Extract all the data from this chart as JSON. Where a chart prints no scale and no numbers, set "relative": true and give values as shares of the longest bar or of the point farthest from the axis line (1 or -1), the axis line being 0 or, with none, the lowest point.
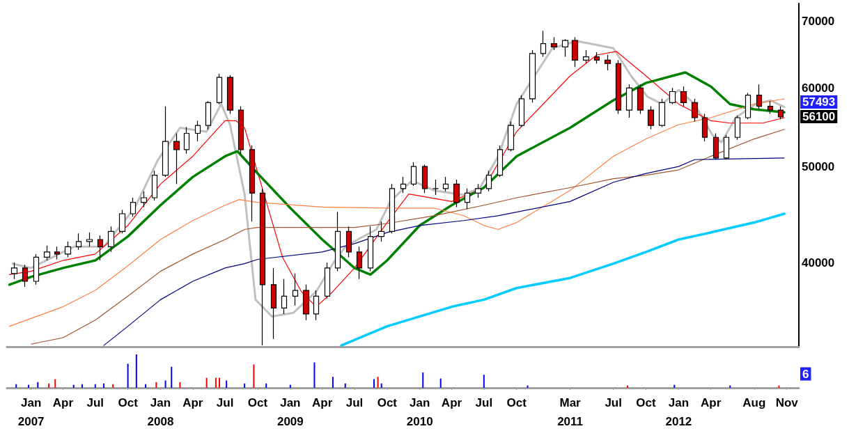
{
  "chart_data": [
    {
      "type": "candlestick",
      "log": "y",
      "tick_labels": "y",
      "marker": "none",
      "line_style": "solid",
      "ylim": [
        32900,
        73000
      ],
      "yticks": [
        40000,
        50000,
        60000,
        70000
      ],
      "xlim": [
        "2006-10-25",
        "2012-12-05"
      ],
      "x": [
        "2006-11-15",
        "2006-12-15",
        "2007-01-15",
        "2007-02-15",
        "2007-03-15",
        "2007-04-15",
        "2007-05-15",
        "2007-06-15",
        "2007-07-15",
        "2007-08-15",
        "2007-09-15",
        "2007-10-15",
        "2007-11-15",
        "2007-12-15",
        "2008-01-15",
        "2008-02-15",
        "2008-03-15",
        "2008-04-15",
        "2008-05-15",
        "2008-06-15",
        "2008-07-15",
        "2008-08-15",
        "2008-09-15",
        "2008-10-15",
        "2008-11-15",
        "2008-12-15",
        "2009-01-15",
        "2009-02-15",
        "2009-03-15",
        "2009-04-15",
        "2009-05-15",
        "2009-06-15",
        "2009-07-15",
        "2009-08-15",
        "2009-09-15",
        "2009-10-15",
        "2009-11-15",
        "2009-12-15",
        "2010-01-15",
        "2010-02-15",
        "2010-03-15",
        "2010-04-15",
        "2010-05-15",
        "2010-06-15",
        "2010-07-15",
        "2010-08-15",
        "2010-09-15",
        "2010-10-15",
        "2010-11-15",
        "2010-12-15",
        "2011-01-15",
        "2011-02-15",
        "2011-03-15",
        "2011-04-15",
        "2011-05-15",
        "2011-06-15",
        "2011-07-15",
        "2011-08-15",
        "2011-09-15",
        "2011-10-15",
        "2011-11-15",
        "2011-12-15",
        "2012-01-15",
        "2012-02-15",
        "2012-03-15",
        "2012-04-15",
        "2012-05-15",
        "2012-06-15",
        "2012-07-15",
        "2012-08-15",
        "2012-09-15",
        "2012-10-15"
      ],
      "ohlc": [
        [
          39000,
          40000,
          38500,
          39500
        ],
        [
          39500,
          39800,
          37800,
          38300
        ],
        [
          38300,
          40800,
          38000,
          40500
        ],
        [
          40500,
          41600,
          40200,
          41000
        ],
        [
          41000,
          41500,
          40300,
          40800
        ],
        [
          40800,
          42000,
          40500,
          41500
        ],
        [
          41500,
          42800,
          41200,
          42000
        ],
        [
          42000,
          42900,
          41500,
          42200
        ],
        [
          42200,
          42600,
          40200,
          41500
        ],
        [
          41500,
          43500,
          41000,
          43000
        ],
        [
          43000,
          45200,
          42800,
          44800
        ],
        [
          44800,
          46500,
          44500,
          46000
        ],
        [
          46000,
          47200,
          45500,
          46500
        ],
        [
          46500,
          49500,
          46200,
          49000
        ],
        [
          49000,
          57500,
          48800,
          53000
        ],
        [
          53000,
          54000,
          48000,
          52000
        ],
        [
          52000,
          54800,
          51500,
          54000
        ],
        [
          54000,
          55600,
          53000,
          55000
        ],
        [
          55000,
          58200,
          54500,
          58000
        ],
        [
          58000,
          62000,
          57800,
          61500
        ],
        [
          61500,
          61800,
          56500,
          57000
        ],
        [
          57000,
          57500,
          51500,
          52000
        ],
        [
          52000,
          52500,
          44000,
          47000
        ],
        [
          47000,
          47500,
          33000,
          38000
        ],
        [
          38000,
          39500,
          33500,
          36000
        ],
        [
          36000,
          38500,
          35500,
          37000
        ],
        [
          37000,
          39000,
          36200,
          37500
        ],
        [
          37500,
          38000,
          35000,
          35500
        ],
        [
          35500,
          37500,
          35000,
          37000
        ],
        [
          37000,
          40000,
          36800,
          39500
        ],
        [
          39500,
          45000,
          39200,
          43000
        ],
        [
          43000,
          43500,
          40500,
          41000
        ],
        [
          41000,
          41500,
          38500,
          39500
        ],
        [
          39500,
          43500,
          39200,
          42500
        ],
        [
          42500,
          44000,
          42000,
          43000
        ],
        [
          43000,
          48000,
          42800,
          47500
        ],
        [
          47500,
          48800,
          47000,
          48000
        ],
        [
          48000,
          50500,
          47800,
          50000
        ],
        [
          50000,
          50200,
          47000,
          47500
        ],
        [
          47500,
          48500,
          46800,
          47500
        ],
        [
          47500,
          48800,
          47200,
          48000
        ],
        [
          48000,
          48500,
          45500,
          46000
        ],
        [
          46000,
          47500,
          45300,
          47000
        ],
        [
          47000,
          48000,
          46500,
          47500
        ],
        [
          47500,
          49500,
          47200,
          49000
        ],
        [
          49000,
          52500,
          48800,
          52000
        ],
        [
          52000,
          55500,
          51800,
          55000
        ],
        [
          55000,
          59000,
          54800,
          58500
        ],
        [
          58500,
          65500,
          58000,
          65000
        ],
        [
          65000,
          68500,
          64500,
          66500
        ],
        [
          66500,
          67500,
          65500,
          66000
        ],
        [
          66000,
          67200,
          64500,
          67000
        ],
        [
          67000,
          67500,
          63000,
          64000
        ],
        [
          64000,
          65500,
          63500,
          64500
        ],
        [
          64500,
          65200,
          63500,
          64000
        ],
        [
          64000,
          64800,
          62500,
          63500
        ],
        [
          63500,
          64000,
          56500,
          57000
        ],
        [
          57000,
          60500,
          56000,
          60000
        ],
        [
          60000,
          60500,
          56500,
          57000
        ],
        [
          57000,
          57500,
          54500,
          55000
        ],
        [
          55000,
          58500,
          54800,
          58000
        ],
        [
          58000,
          60000,
          57800,
          59500
        ],
        [
          59500,
          60200,
          57500,
          58000
        ],
        [
          58000,
          58500,
          55500,
          56000
        ],
        [
          56000,
          56500,
          53000,
          53500
        ],
        [
          53500,
          54000,
          50800,
          51000
        ],
        [
          51000,
          53800,
          50800,
          53500
        ],
        [
          53500,
          56300,
          53200,
          56000
        ],
        [
          56000,
          59300,
          55800,
          59000
        ],
        [
          59000,
          60500,
          57200,
          57500
        ],
        [
          57500,
          58200,
          56500,
          57000
        ],
        [
          57000,
          57500,
          55800,
          56100
        ]
      ],
      "series": [
        {
          "type": "line",
          "color": "#c0c0c0",
          "x": [
            "2006-11-10",
            "2007-01-01",
            "2007-05-01",
            "2007-07-25",
            "2007-10-20",
            "2007-12-25",
            "2008-02-25",
            "2008-05-10",
            "2008-06-20",
            "2008-07-15",
            "2008-08-25",
            "2008-09-25",
            "2008-11-10",
            "2009-01-10",
            "2009-03-15",
            "2009-05-01",
            "2009-06-05",
            "2009-07-10",
            "2009-09-01",
            "2009-10-10",
            "2009-12-10",
            "2010-02-10",
            "2010-05-05",
            "2010-06-20",
            "2010-08-10",
            "2010-10-01",
            "2011-01-10",
            "2011-03-20",
            "2011-07-01",
            "2011-08-20",
            "2011-10-05",
            "2011-11-15",
            "2012-01-01",
            "2012-02-15",
            "2012-04-05",
            "2012-05-01",
            "2012-06-10",
            "2012-08-05",
            "2012-09-15",
            "2012-10-25"
          ],
          "values": [
            39900,
            39500,
            41500,
            41500,
            45400,
            50800,
            54700,
            54200,
            57800,
            55100,
            46900,
            36700,
            35300,
            35600,
            37400,
            39900,
            41500,
            42200,
            43200,
            46100,
            48400,
            47300,
            46800,
            47600,
            51200,
            57800,
            65800,
            66900,
            65800,
            61700,
            58800,
            57800,
            59700,
            57800,
            53800,
            52900,
            56000,
            57800,
            58300,
            57400
          ]
        },
        {
          "type": "line",
          "color": "#ff0000",
          "x": [
            "2006-11-01",
            "2007-01-01",
            "2007-04-01",
            "2007-07-01",
            "2007-10-01",
            "2008-01-01",
            "2008-04-01",
            "2008-07-01",
            "2008-08-01",
            "2008-08-25",
            "2008-12-10",
            "2009-02-01",
            "2009-03-15",
            "2009-05-01",
            "2009-07-01",
            "2009-10-01",
            "2009-12-01",
            "2010-04-01",
            "2010-07-01",
            "2010-10-01",
            "2011-03-01",
            "2011-05-15",
            "2011-07-10",
            "2011-10-01",
            "2012-01-01",
            "2012-04-01",
            "2012-05-25",
            "2012-08-25",
            "2012-10-25"
          ],
          "values": [
            38900,
            39200,
            40200,
            40800,
            43600,
            48000,
            51200,
            55600,
            55600,
            54700,
            40500,
            37400,
            36100,
            37400,
            39500,
            43900,
            46900,
            46100,
            47600,
            54200,
            61700,
            64770,
            65300,
            61700,
            57800,
            55600,
            55300,
            55300,
            56000
          ]
        },
        {
          "type": "line",
          "color": "#008000",
          "x": [
            "2006-11-01",
            "2007-01-01",
            "2007-04-01",
            "2007-07-01",
            "2007-10-01",
            "2008-01-01",
            "2008-04-01",
            "2008-07-01",
            "2008-08-05",
            "2008-10-01",
            "2009-01-01",
            "2009-04-01",
            "2009-07-01",
            "2009-08-15",
            "2009-10-01",
            "2010-01-01",
            "2010-04-01",
            "2010-07-01",
            "2010-10-01",
            "2011-03-01",
            "2011-07-01",
            "2011-10-01",
            "2012-01-20",
            "2012-04-01",
            "2012-05-25",
            "2012-08-01",
            "2012-10-25"
          ],
          "values": [
            38000,
            38700,
            39500,
            40200,
            42500,
            45700,
            48800,
            51200,
            51800,
            49200,
            45400,
            42200,
            39500,
            38900,
            40200,
            43600,
            45700,
            47600,
            51200,
            54700,
            58300,
            60700,
            62200,
            60200,
            57800,
            57100,
            56700
          ]
        },
        {
          "type": "line",
          "color": "#ff8040",
          "x": [
            "2006-11-01",
            "2007-04-01",
            "2007-07-01",
            "2007-10-01",
            "2008-01-01",
            "2008-04-01",
            "2008-07-01",
            "2008-08-10",
            "2008-10-01",
            "2009-04-01",
            "2009-10-01",
            "2010-02-10",
            "2010-05-05",
            "2010-07-01",
            "2010-08-10",
            "2010-10-01",
            "2011-03-01",
            "2011-07-01",
            "2011-10-01",
            "2012-01-01",
            "2012-04-01",
            "2012-08-01",
            "2012-10-25"
          ],
          "values": [
            34500,
            36100,
            37500,
            39700,
            42200,
            44100,
            45700,
            46300,
            46000,
            45500,
            45400,
            45400,
            44600,
            43600,
            43200,
            43900,
            47300,
            51200,
            53300,
            55100,
            56000,
            57800,
            58500
          ]
        },
        {
          "type": "line",
          "color": "#a0522d",
          "x": [
            "2007-01-01",
            "2007-04-01",
            "2007-07-01",
            "2007-10-01",
            "2008-01-01",
            "2008-04-01",
            "2008-07-01",
            "2008-08-25",
            "2008-10-01",
            "2009-04-01",
            "2009-07-01",
            "2009-10-01",
            "2010-02-10",
            "2010-07-01",
            "2010-10-01",
            "2011-03-01",
            "2011-07-01",
            "2011-10-01",
            "2012-01-01",
            "2012-04-01",
            "2012-08-01",
            "2012-10-25"
          ],
          "values": [
            33100,
            33600,
            35000,
            37000,
            39200,
            40800,
            42200,
            43200,
            43400,
            43400,
            43400,
            43800,
            44600,
            45700,
            46500,
            47600,
            48600,
            49000,
            49600,
            51200,
            53300,
            54500
          ]
        },
        {
          "type": "line",
          "color": "#000080",
          "x": [
            "2007-07-25",
            "2007-10-01",
            "2008-01-01",
            "2008-04-01",
            "2008-07-01",
            "2008-08-25",
            "2008-10-01",
            "2009-04-01",
            "2009-07-01",
            "2009-10-01",
            "2010-01-01",
            "2010-05-05",
            "2010-08-10",
            "2011-03-01",
            "2011-07-01",
            "2011-10-01",
            "2012-01-01",
            "2012-02-15",
            "2012-10-25"
          ],
          "values": [
            33000,
            34500,
            36700,
            38300,
            39500,
            39900,
            40300,
            41000,
            41800,
            42900,
            43600,
            44100,
            44600,
            46100,
            48200,
            49200,
            50000,
            50800,
            51000
          ]
        },
        {
          "type": "line",
          "color": "#00ccff",
          "x": [
            "2009-05-25",
            "2009-10-01",
            "2010-04-01",
            "2010-07-01",
            "2010-10-01",
            "2011-03-01",
            "2011-07-01",
            "2011-10-01",
            "2012-01-01",
            "2012-04-01",
            "2012-08-01",
            "2012-10-25"
          ],
          "values": [
            33000,
            34500,
            36100,
            36700,
            37700,
            38600,
            39900,
            41000,
            42200,
            42900,
            43900,
            44800
          ]
        }
      ],
      "annotations": [
        "57493",
        "56100"
      ]
    },
    {
      "type": "bar",
      "relative": true,
      "tick_labels": "x",
      "xlim": [
        "2006-10-25",
        "2012-12-05"
      ],
      "xticks": [
        {
          "value": "2007-01-01",
          "label": "Jan\n2007"
        },
        {
          "value": "2007-04-01",
          "label": "Apr"
        },
        {
          "value": "2007-07-01",
          "label": "Jul"
        },
        {
          "value": "2007-10-01",
          "label": "Oct"
        },
        {
          "value": "2008-01-01",
          "label": "Jan\n2008"
        },
        {
          "value": "2008-04-01",
          "label": "Apr"
        },
        {
          "value": "2008-07-01",
          "label": "Jul"
        },
        {
          "value": "2008-10-01",
          "label": "Oct"
        },
        {
          "value": "2009-01-01",
          "label": "Jan\n2009"
        },
        {
          "value": "2009-04-01",
          "label": "Apr"
        },
        {
          "value": "2009-07-01",
          "label": "Jul"
        },
        {
          "value": "2009-10-01",
          "label": "Oct"
        },
        {
          "value": "2010-01-01",
          "label": "Jan\n2010"
        },
        {
          "value": "2010-04-01",
          "label": "Apr"
        },
        {
          "value": "2010-07-01",
          "label": "Jul"
        },
        {
          "value": "2010-10-01",
          "label": "Oct"
        },
        {
          "value": "2011-03-01",
          "label": "Mar\n2011"
        },
        {
          "value": "2011-07-01",
          "label": "Jul"
        },
        {
          "value": "2011-10-01",
          "label": "Oct"
        },
        {
          "value": "2012-01-01",
          "label": "Jan\n2012"
        },
        {
          "value": "2012-04-01",
          "label": "Apr"
        },
        {
          "value": "2012-08-01",
          "label": "Aug"
        },
        {
          "value": "2012-11-01",
          "label": "Nov"
        }
      ],
      "x": [
        "2006-11-20",
        "2006-12-25",
        "2007-01-20",
        "2007-02-20",
        "2007-03-10",
        "2007-05-01",
        "2007-05-25",
        "2007-07-01",
        "2007-07-25",
        "2007-08-20",
        "2007-10-01",
        "2007-10-25",
        "2007-11-20",
        "2007-12-20",
        "2008-01-15",
        "2008-02-01",
        "2008-02-25",
        "2008-05-10",
        "2008-06-05",
        "2008-06-15",
        "2008-07-05",
        "2008-08-25",
        "2008-09-20",
        "2008-10-25",
        "2009-01-01",
        "2009-03-10",
        "2009-05-01",
        "2009-06-05",
        "2009-08-25",
        "2009-09-05",
        "2009-09-15",
        "2010-01-10",
        "2010-03-01",
        "2010-07-01",
        "2010-11-01",
        "2011-08-10",
        "2011-12-20",
        "2012-05-25",
        "2012-10-10"
      ],
      "values": [
        0.11,
        0.09,
        0.17,
        0.13,
        0.26,
        0.09,
        0.11,
        0.11,
        0.13,
        0.11,
        0.72,
        1,
        0.11,
        0.17,
        0.22,
        0.63,
        0.17,
        0.3,
        0.3,
        0.3,
        0.22,
        0.13,
        0.7,
        0.13,
        0.09,
        0.76,
        0.33,
        0.13,
        0.26,
        0.33,
        0.13,
        0.46,
        0.28,
        0.39,
        0.07,
        0.07,
        0.09,
        0.07,
        0.07
      ],
      "colors": [
        "#0000ff",
        "#0000ff",
        "#0000ff",
        "#ff0000",
        "#ff0000",
        "#0000ff",
        "#0000ff",
        "#0000ff",
        "#0000ff",
        "#ff0000",
        "#0000ff",
        "#0000ff",
        "#0000ff",
        "#ff0000",
        "#0000ff",
        "#0000ff",
        "#ff0000",
        "#ff0000",
        "#ff0000",
        "#ff0000",
        "#0000ff",
        "#0000ff",
        "#ff0000",
        "#0000ff",
        "#0000ff",
        "#0000ff",
        "#0000ff",
        "#0000ff",
        "#0000ff",
        "#ff0000",
        "#0000ff",
        "#0000ff",
        "#0000ff",
        "#0000ff",
        "#0000ff",
        "#ff0000",
        "#0000ff",
        "#0000ff",
        "#ff0000"
      ],
      "annotations": [
        "6"
      ]
    }
  ]
}
